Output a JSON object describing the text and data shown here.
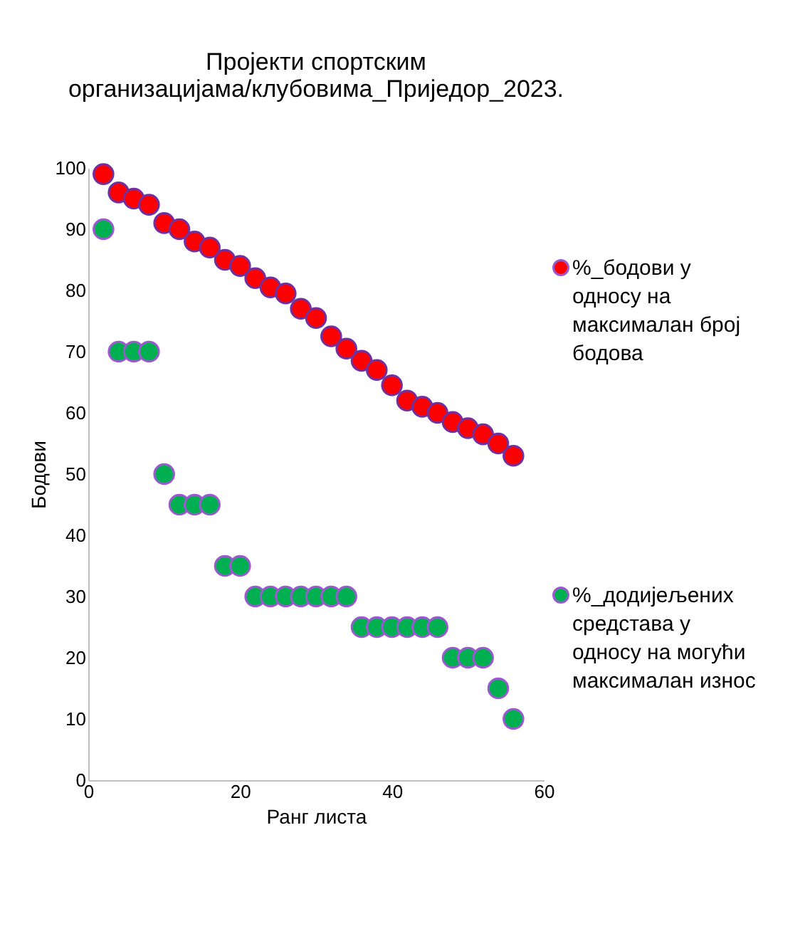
{
  "chart_data": {
    "type": "scatter",
    "title": "Пројекти спортским организацијама/клубовима_Приједор_2023.",
    "xlabel": "Ранг листа",
    "ylabel": "Бодови",
    "x": [
      2,
      4,
      6,
      8,
      10,
      12,
      14,
      16,
      18,
      20,
      22,
      24,
      26,
      28,
      30,
      32,
      34,
      36,
      38,
      40,
      42,
      44,
      46,
      48,
      50,
      52,
      54,
      56
    ],
    "series": [
      {
        "name": "%_бодови у односу на максималан број бодова",
        "color": "#ff0000",
        "values": [
          99,
          96,
          95,
          94,
          91,
          90,
          88,
          87,
          85,
          84,
          82,
          80.5,
          79.5,
          77,
          75.5,
          72.5,
          70.5,
          68.5,
          67,
          64.5,
          62,
          61,
          60,
          58.5,
          57.5,
          56.5,
          55,
          53
        ]
      },
      {
        "name": "%_додијељених средстава у односу на могући максималан износ",
        "color": "#00b050",
        "values": [
          90,
          70,
          70,
          70,
          50,
          45,
          45,
          45,
          35,
          35,
          30,
          30,
          30,
          30,
          30,
          30,
          30,
          25,
          25,
          25,
          25,
          25,
          25,
          20,
          20,
          20,
          15,
          10
        ]
      }
    ],
    "xlim": [
      0,
      60
    ],
    "xticks": [
      0,
      20,
      40,
      60
    ],
    "ylim": [
      0,
      100
    ],
    "yticks": [
      0,
      10,
      20,
      30,
      40,
      50,
      60,
      70,
      80,
      90,
      100
    ],
    "grid": false,
    "legend": "right",
    "marker": "circle"
  }
}
